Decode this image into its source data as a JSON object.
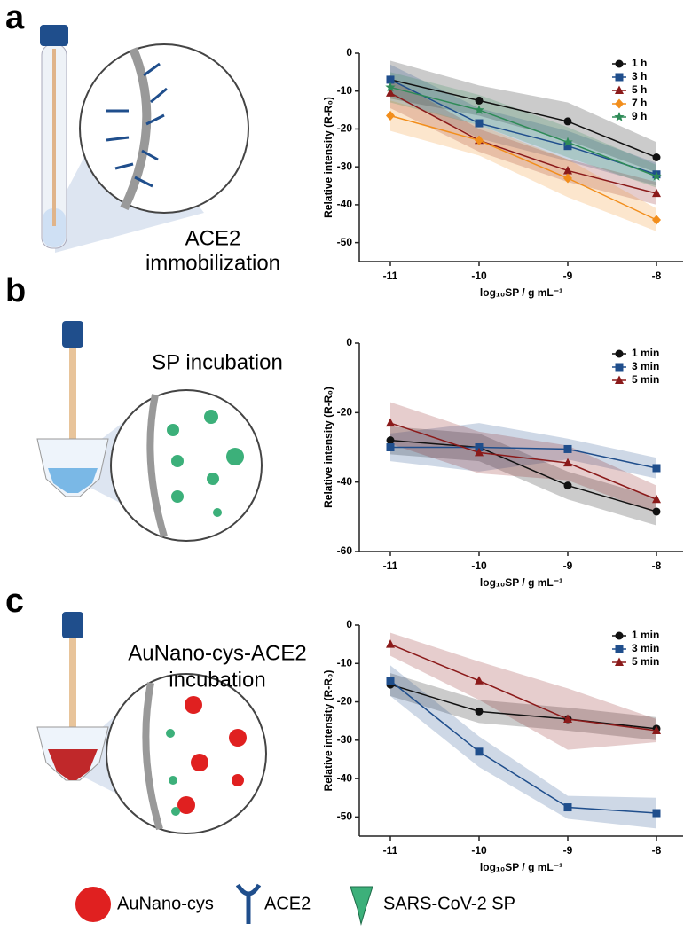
{
  "panels": [
    {
      "label": "a",
      "caption": [
        "ACE2",
        "immobilization"
      ]
    },
    {
      "label": "b",
      "caption": [
        "SP incubation"
      ]
    },
    {
      "label": "c",
      "caption": [
        "AuNano-cys-ACE2",
        "incubation"
      ]
    }
  ],
  "legend": [
    "AuNano-cys",
    "ACE2",
    "SARS-CoV-2 SP"
  ],
  "chart_data": [
    {
      "type": "line",
      "x_label": "log₁₀SP / g mL⁻¹",
      "y_label": "Relative intensity (R-R₀)",
      "x": [
        -11,
        -10,
        -9,
        -8
      ],
      "xlim": [
        -11.35,
        -7.7
      ],
      "xticks": [
        -11,
        -10,
        -9,
        -8
      ],
      "ylim": [
        -55,
        0
      ],
      "yticks": [
        0,
        -10,
        -20,
        -30,
        -40,
        -50
      ],
      "legend_position": "upper right",
      "series": [
        {
          "name": "1 h",
          "color": "#111111",
          "marker": "circle",
          "values": [
            -7,
            -12.5,
            -18,
            -27.5
          ],
          "errors": [
            5,
            4,
            5,
            4
          ]
        },
        {
          "name": "3 h",
          "color": "#1f4e8c",
          "marker": "square",
          "values": [
            -7,
            -18.5,
            -24.5,
            -32
          ],
          "errors": [
            4,
            4,
            4,
            3
          ]
        },
        {
          "name": "5 h",
          "color": "#8b1a1a",
          "marker": "triangle",
          "values": [
            -10.5,
            -23,
            -31,
            -37
          ],
          "errors": [
            4,
            3,
            3,
            3
          ]
        },
        {
          "name": "7 h",
          "color": "#f28e1c",
          "marker": "diamond",
          "values": [
            -16.5,
            -23,
            -33,
            -44
          ],
          "errors": [
            4,
            4,
            5,
            3
          ]
        },
        {
          "name": "9 h",
          "color": "#2e8b57",
          "marker": "star",
          "values": [
            -9,
            -15,
            -23.5,
            -32.5
          ],
          "errors": [
            4,
            4,
            4,
            3
          ]
        }
      ]
    },
    {
      "type": "line",
      "x_label": "log₁₀SP / g mL⁻¹",
      "y_label": "Relative intensity (R-R₀)",
      "x": [
        -11,
        -10,
        -9,
        -8
      ],
      "xlim": [
        -11.35,
        -7.7
      ],
      "xticks": [
        -11,
        -10,
        -9,
        -8
      ],
      "ylim": [
        -60,
        0
      ],
      "yticks": [
        0,
        -20,
        -40,
        -60
      ],
      "legend_position": "upper right",
      "series": [
        {
          "name": "1 min",
          "color": "#111111",
          "marker": "circle",
          "values": [
            -28,
            -30,
            -41,
            -48.5
          ],
          "errors": [
            4,
            4,
            4,
            4
          ]
        },
        {
          "name": "3 min",
          "color": "#1f4e8c",
          "marker": "square",
          "values": [
            -30,
            -30,
            -30.5,
            -36
          ],
          "errors": [
            4,
            7,
            3,
            3
          ]
        },
        {
          "name": "5 min",
          "color": "#8b1a1a",
          "marker": "triangle",
          "values": [
            -23,
            -31.5,
            -34.5,
            -45
          ],
          "errors": [
            6,
            6,
            5,
            4
          ]
        }
      ]
    },
    {
      "type": "line",
      "x_label": "log₁₀SP / g mL⁻¹",
      "y_label": "Relative intensity (R-R₀)",
      "x": [
        -11,
        -10,
        -9,
        -8
      ],
      "xlim": [
        -11.35,
        -7.7
      ],
      "xticks": [
        -11,
        -10,
        -9,
        -8
      ],
      "ylim": [
        -55,
        0
      ],
      "yticks": [
        0,
        -10,
        -20,
        -30,
        -40,
        -50
      ],
      "legend_position": "upper right",
      "series": [
        {
          "name": "1 min",
          "color": "#111111",
          "marker": "circle",
          "values": [
            -15.5,
            -22.5,
            -24.5,
            -27
          ],
          "errors": [
            3,
            3,
            3,
            3
          ]
        },
        {
          "name": "3 min",
          "color": "#1f4e8c",
          "marker": "square",
          "values": [
            -14.5,
            -33,
            -47.5,
            -49
          ],
          "errors": [
            4,
            4,
            3,
            4
          ]
        },
        {
          "name": "5 min",
          "color": "#8b1a1a",
          "marker": "triangle",
          "values": [
            -5,
            -14.5,
            -24.5,
            -27.5
          ],
          "errors": [
            3,
            5,
            8,
            3
          ]
        }
      ]
    }
  ]
}
